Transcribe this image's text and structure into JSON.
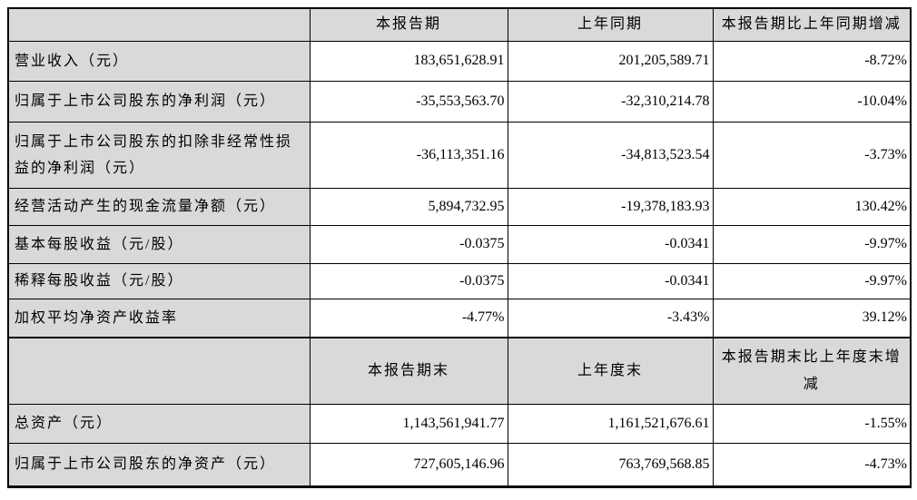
{
  "colors": {
    "header_background": "#d9d9d9",
    "label_background": "#d9d9d9",
    "value_background": "#ffffff",
    "border": "#000000",
    "text": "#000000"
  },
  "table": {
    "section1": {
      "period_header": "本报告期",
      "prior_header": "上年同期",
      "change_header": "本报告期比上年同期增减",
      "rows": [
        {
          "label": "营业收入（元）",
          "current": "183,651,628.91",
          "prior": "201,205,589.71",
          "change": "-8.72%"
        },
        {
          "label": "归属于上市公司股东的净利润（元）",
          "current": "-35,553,563.70",
          "prior": "-32,310,214.78",
          "change": "-10.04%"
        },
        {
          "label": "归属于上市公司股东的扣除非经常性损益的净利润（元）",
          "current": "-36,113,351.16",
          "prior": "-34,813,523.54",
          "change": "-3.73%"
        },
        {
          "label": "经营活动产生的现金流量净额（元）",
          "current": "5,894,732.95",
          "prior": "-19,378,183.93",
          "change": "130.42%"
        },
        {
          "label": "基本每股收益（元/股）",
          "current": "-0.0375",
          "prior": "-0.0341",
          "change": "-9.97%"
        },
        {
          "label": "稀释每股收益（元/股）",
          "current": "-0.0375",
          "prior": "-0.0341",
          "change": "-9.97%"
        },
        {
          "label": "加权平均净资产收益率",
          "current": "-4.77%",
          "prior": "-3.43%",
          "change": "39.12%"
        }
      ]
    },
    "section2": {
      "period_header": "本报告期末",
      "prior_header": "上年度末",
      "change_header": "本报告期末比上年度末增减",
      "rows": [
        {
          "label": "总资产（元）",
          "current": "1,143,561,941.77",
          "prior": "1,161,521,676.61",
          "change": "-1.55%"
        },
        {
          "label": "归属于上市公司股东的净资产（元）",
          "current": "727,605,146.96",
          "prior": "763,769,568.85",
          "change": "-4.73%"
        }
      ]
    }
  }
}
